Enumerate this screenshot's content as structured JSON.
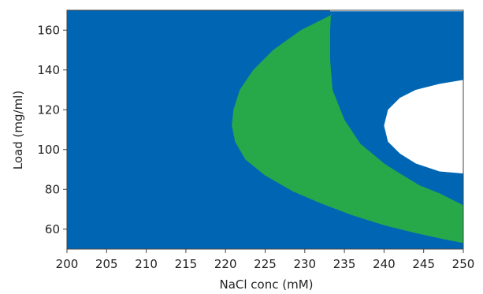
{
  "chart_data": {
    "type": "heatmap",
    "title": "",
    "xlabel": "NaCl conc (mM)",
    "ylabel": "Load (mg/ml)",
    "xlim": [
      200,
      250
    ],
    "ylim": [
      50,
      170
    ],
    "x_ticks": [
      200,
      205,
      210,
      215,
      220,
      225,
      230,
      235,
      240,
      245,
      250
    ],
    "y_ticks": [
      60,
      80,
      100,
      120,
      140,
      160
    ],
    "grid": false,
    "legend": "none",
    "colors": {
      "blue": "#0066b3",
      "green": "#27a94a",
      "white": "#ffffff"
    },
    "regions": [
      {
        "color": "blue",
        "description": "background region"
      },
      {
        "color": "green",
        "boundary": [
          [
            233.5,
            168
          ],
          [
            229.5,
            160
          ],
          [
            226,
            150
          ],
          [
            223.5,
            140
          ],
          [
            221.8,
            130
          ],
          [
            221,
            120
          ],
          [
            220.8,
            112
          ],
          [
            221.2,
            104
          ],
          [
            222.5,
            95
          ],
          [
            225,
            87
          ],
          [
            228.5,
            79
          ],
          [
            232,
            73
          ],
          [
            236,
            67
          ],
          [
            240,
            62
          ],
          [
            244,
            58
          ],
          [
            247.5,
            55
          ],
          [
            250,
            53
          ],
          [
            250,
            72
          ],
          [
            247,
            78
          ],
          [
            244.5,
            82
          ],
          [
            242,
            88
          ],
          [
            240,
            93
          ],
          [
            237,
            103
          ],
          [
            235,
            115
          ],
          [
            233.5,
            130
          ],
          [
            233.2,
            145
          ],
          [
            233.2,
            160
          ],
          [
            233.3,
            168
          ]
        ]
      },
      {
        "color": "white",
        "boundary": [
          [
            233.2,
            170
          ],
          [
            250,
            170
          ],
          [
            250,
            169.5
          ],
          [
            233.2,
            169.5
          ]
        ]
      },
      {
        "color": "white",
        "boundary": [
          [
            250,
            135
          ],
          [
            247,
            133
          ],
          [
            244,
            130
          ],
          [
            242,
            126
          ],
          [
            240.5,
            120
          ],
          [
            240,
            112
          ],
          [
            240.5,
            104
          ],
          [
            242,
            98
          ],
          [
            244,
            93
          ],
          [
            247,
            89
          ],
          [
            250,
            88
          ]
        ]
      }
    ]
  }
}
